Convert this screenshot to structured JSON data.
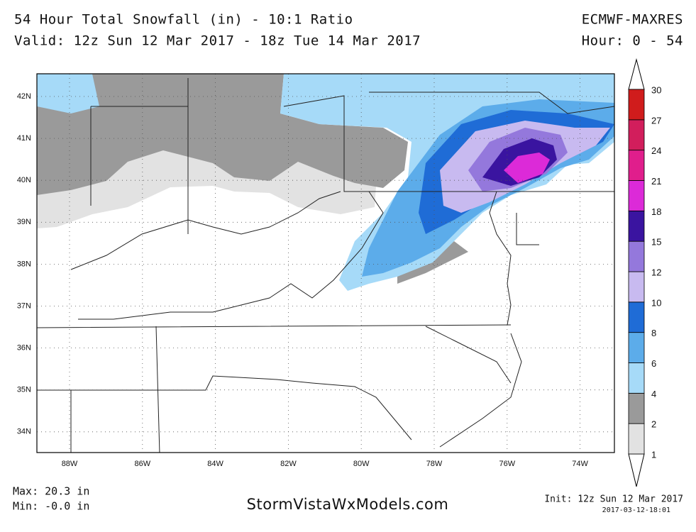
{
  "header": {
    "title": "54 Hour Total Snowfall (in) - 10:1 Ratio",
    "valid": "Valid: 12z Sun 12 Mar 2017 - 18z Tue 14 Mar 2017",
    "model": "ECMWF-MAXRES",
    "hour": "Hour: 0 - 54"
  },
  "map": {
    "lat_labels": [
      "42N",
      "41N",
      "40N",
      "39N",
      "38N",
      "37N",
      "36N",
      "35N",
      "34N"
    ],
    "lon_labels": [
      "88W",
      "86W",
      "84W",
      "82W",
      "80W",
      "78W",
      "76W",
      "74W"
    ]
  },
  "legend": {
    "labels": [
      "1",
      "2",
      "4",
      "6",
      "8",
      "10",
      "12",
      "15",
      "18",
      "21",
      "24",
      "27",
      "30"
    ],
    "colors": [
      "#e2e2e2",
      "#9a9a9a",
      "#a6daf8",
      "#5cacea",
      "#1f6cd6",
      "#c8baf0",
      "#9478dc",
      "#3a14a0",
      "#dc2ad8",
      "#e01e8c",
      "#d21e5c",
      "#d01c1c"
    ]
  },
  "footer": {
    "max": "Max: 20.3 in",
    "min": "Min: -0.0 in",
    "site": "StormVistaWxModels.com",
    "init": "Init: 12z Sun 12 Mar 2017",
    "timestamp": "2017-03-12-18:01"
  }
}
